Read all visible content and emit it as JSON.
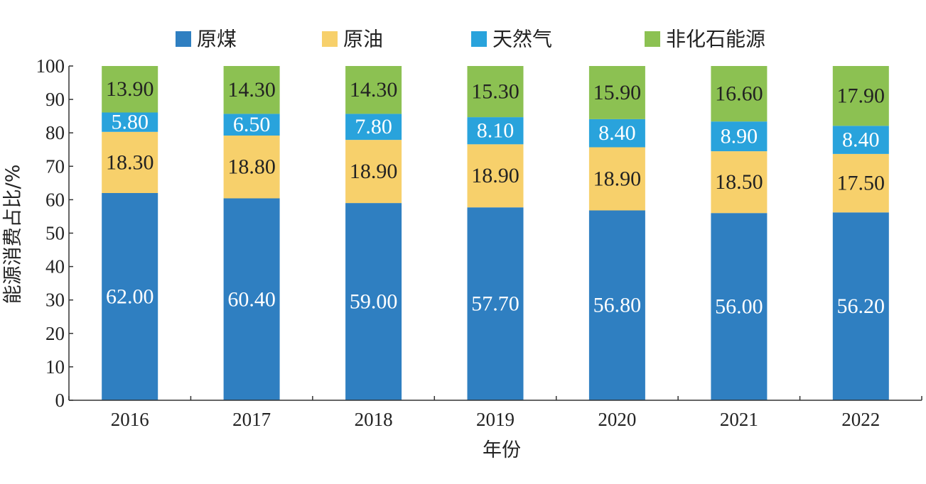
{
  "chart_data": {
    "type": "bar",
    "stacked": true,
    "categories": [
      "2016",
      "2017",
      "2018",
      "2019",
      "2020",
      "2021",
      "2022"
    ],
    "series": [
      {
        "name": "原煤",
        "color": "#2f7fc1",
        "label_color": "#ffffff",
        "values": [
          62.0,
          60.4,
          59.0,
          57.7,
          56.8,
          56.0,
          56.2
        ],
        "labels": [
          "62.00",
          "60.40",
          "59.00",
          "57.70",
          "56.80",
          "56.00",
          "56.20"
        ]
      },
      {
        "name": "原油",
        "color": "#f7d06b",
        "label_color": "#222222",
        "values": [
          18.3,
          18.8,
          18.9,
          18.9,
          18.9,
          18.5,
          17.5
        ],
        "labels": [
          "18.30",
          "18.80",
          "18.90",
          "18.90",
          "18.90",
          "18.50",
          "17.50"
        ]
      },
      {
        "name": "天然气",
        "color": "#29a3dc",
        "label_color": "#ffffff",
        "values": [
          5.8,
          6.5,
          7.8,
          8.1,
          8.4,
          8.9,
          8.4
        ],
        "labels": [
          "5.80",
          "6.50",
          "7.80",
          "8.10",
          "8.40",
          "8.90",
          "8.40"
        ]
      },
      {
        "name": "非化石能源",
        "color": "#8cc152",
        "label_color": "#222222",
        "values": [
          13.9,
          14.3,
          14.3,
          15.3,
          15.9,
          16.6,
          17.9
        ],
        "labels": [
          "13.90",
          "14.30",
          "14.30",
          "15.30",
          "15.90",
          "16.60",
          "17.90"
        ]
      }
    ],
    "xlabel": "年份",
    "ylabel": "能源消费占比/%",
    "ylim": [
      0,
      100
    ],
    "yticks": [
      0,
      10,
      20,
      30,
      40,
      50,
      60,
      70,
      80,
      90,
      100
    ],
    "ytick_labels": [
      "0",
      "10",
      "20",
      "30",
      "40",
      "50",
      "60",
      "70",
      "80",
      "90",
      "100"
    ],
    "legend_position": "top",
    "grid": false
  }
}
